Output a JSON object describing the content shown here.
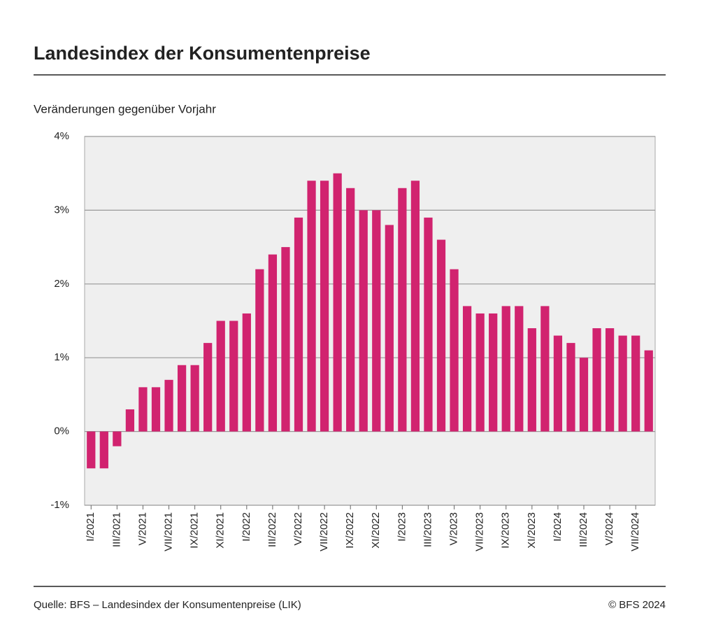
{
  "chart_data": {
    "type": "bar",
    "title": "Landesindex der Konsumentenpreise",
    "subtitle": "Veränderungen gegenüber Vorjahr",
    "source": "Quelle: BFS – Landesindex der Konsumentenpreise (LIK)",
    "credit": "© BFS 2024",
    "categories": [
      "I/2021",
      null,
      "III/2021",
      null,
      "V/2021",
      null,
      "VII/2021",
      null,
      "IX/2021",
      null,
      "XI/2021",
      null,
      "I/2022",
      null,
      "III/2022",
      null,
      "V/2022",
      null,
      "VII/2022",
      null,
      "IX/2022",
      null,
      "XI/2022",
      null,
      "I/2023",
      null,
      "III/2023",
      null,
      "V/2023",
      null,
      "VII/2023",
      null,
      "IX/2023",
      null,
      "XI/2023",
      null,
      "I/2024",
      null,
      "III/2024",
      null,
      "V/2024",
      null,
      "VII/2024",
      null
    ],
    "values": [
      -0.5,
      -0.5,
      -0.2,
      0.3,
      0.6,
      0.6,
      0.7,
      0.9,
      0.9,
      1.2,
      1.5,
      1.5,
      1.6,
      2.2,
      2.4,
      2.5,
      2.9,
      3.4,
      3.4,
      3.5,
      3.3,
      3.0,
      3.0,
      2.8,
      3.3,
      3.4,
      2.9,
      2.6,
      2.2,
      1.7,
      1.6,
      1.6,
      1.7,
      1.7,
      1.4,
      1.7,
      1.3,
      1.2,
      1.0,
      1.4,
      1.4,
      1.3,
      1.3,
      1.1
    ],
    "color": "#d1236f",
    "ylim": [
      -1,
      4
    ],
    "yticks": [
      {
        "value": -1,
        "label": "-1%"
      },
      {
        "value": 0,
        "label": "0%"
      },
      {
        "value": 1,
        "label": "1%"
      },
      {
        "value": 2,
        "label": "2%"
      },
      {
        "value": 3,
        "label": "3%"
      },
      {
        "value": 4,
        "label": "4%"
      }
    ],
    "grid": true
  }
}
